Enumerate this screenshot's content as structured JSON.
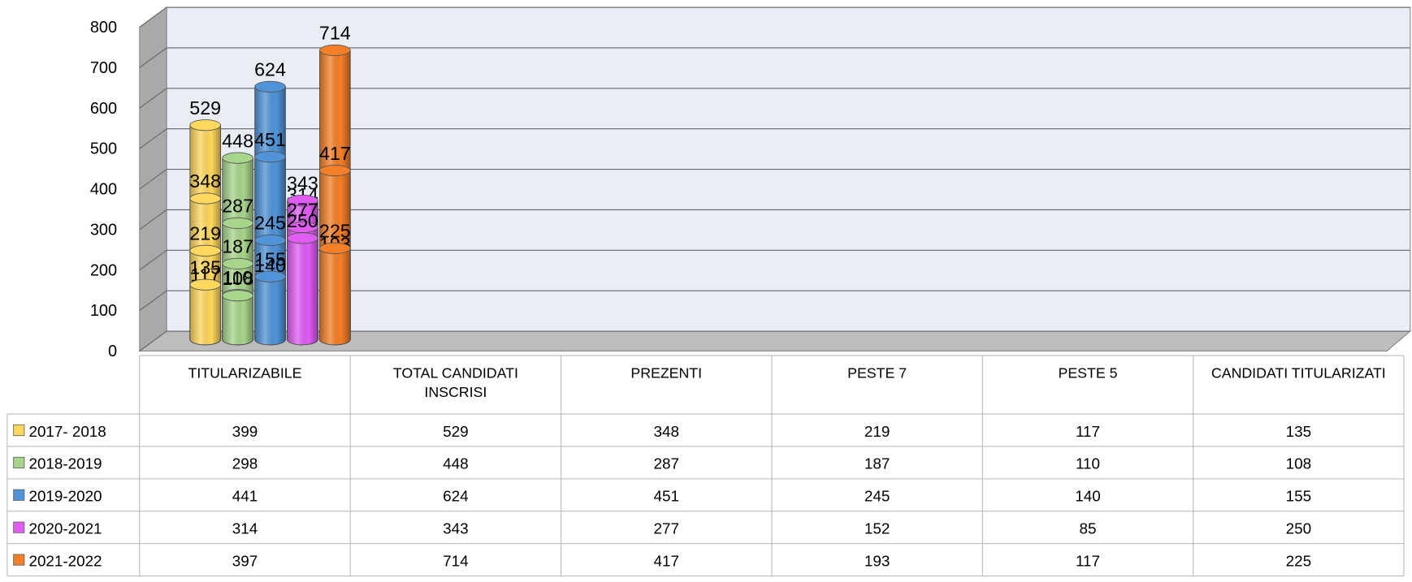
{
  "chart_data": {
    "type": "bar",
    "categories": [
      "TITULARIZABILE",
      "TOTAL CANDIDATI INSCRISI",
      "PREZENTI",
      "PESTE 7",
      "PESTE 5",
      "CANDIDATI TITULARIZATI"
    ],
    "series": [
      {
        "name": "2017- 2018",
        "color": "#ffd85c",
        "values": [
          399,
          529,
          348,
          219,
          117,
          135
        ]
      },
      {
        "name": "2018-2019",
        "color": "#a8d58c",
        "values": [
          298,
          448,
          287,
          187,
          110,
          108
        ]
      },
      {
        "name": "2019-2020",
        "color": "#4f94d9",
        "values": [
          441,
          624,
          451,
          245,
          140,
          155
        ]
      },
      {
        "name": "2020-2021",
        "color": "#e05cf5",
        "values": [
          314,
          343,
          277,
          152,
          85,
          250
        ]
      },
      {
        "name": "2021-2022",
        "color": "#f57f26",
        "values": [
          397,
          714,
          417,
          193,
          117,
          225
        ]
      }
    ],
    "ylim": [
      0,
      800
    ],
    "yticks": [
      0,
      100,
      200,
      300,
      400,
      500,
      600,
      700,
      800
    ],
    "grid": true
  }
}
